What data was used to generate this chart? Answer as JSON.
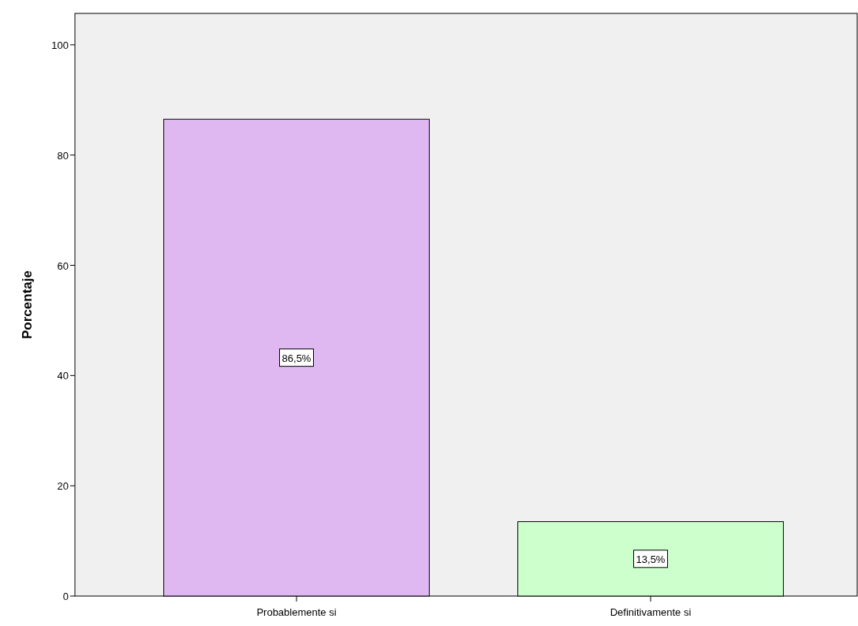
{
  "chart_data": {
    "type": "bar",
    "ylabel": "Porcentaje",
    "categories": [
      "Probablemente si",
      "Definitivamente si"
    ],
    "values": [
      86.5,
      13.5
    ],
    "colors": [
      "#dfb8f2",
      "#ccffcc"
    ],
    "value_labels": [
      "86,5%",
      "13,5%"
    ],
    "ylim": [
      0,
      105.7
    ],
    "yticks": [
      0,
      20,
      40,
      60,
      80,
      100
    ]
  }
}
